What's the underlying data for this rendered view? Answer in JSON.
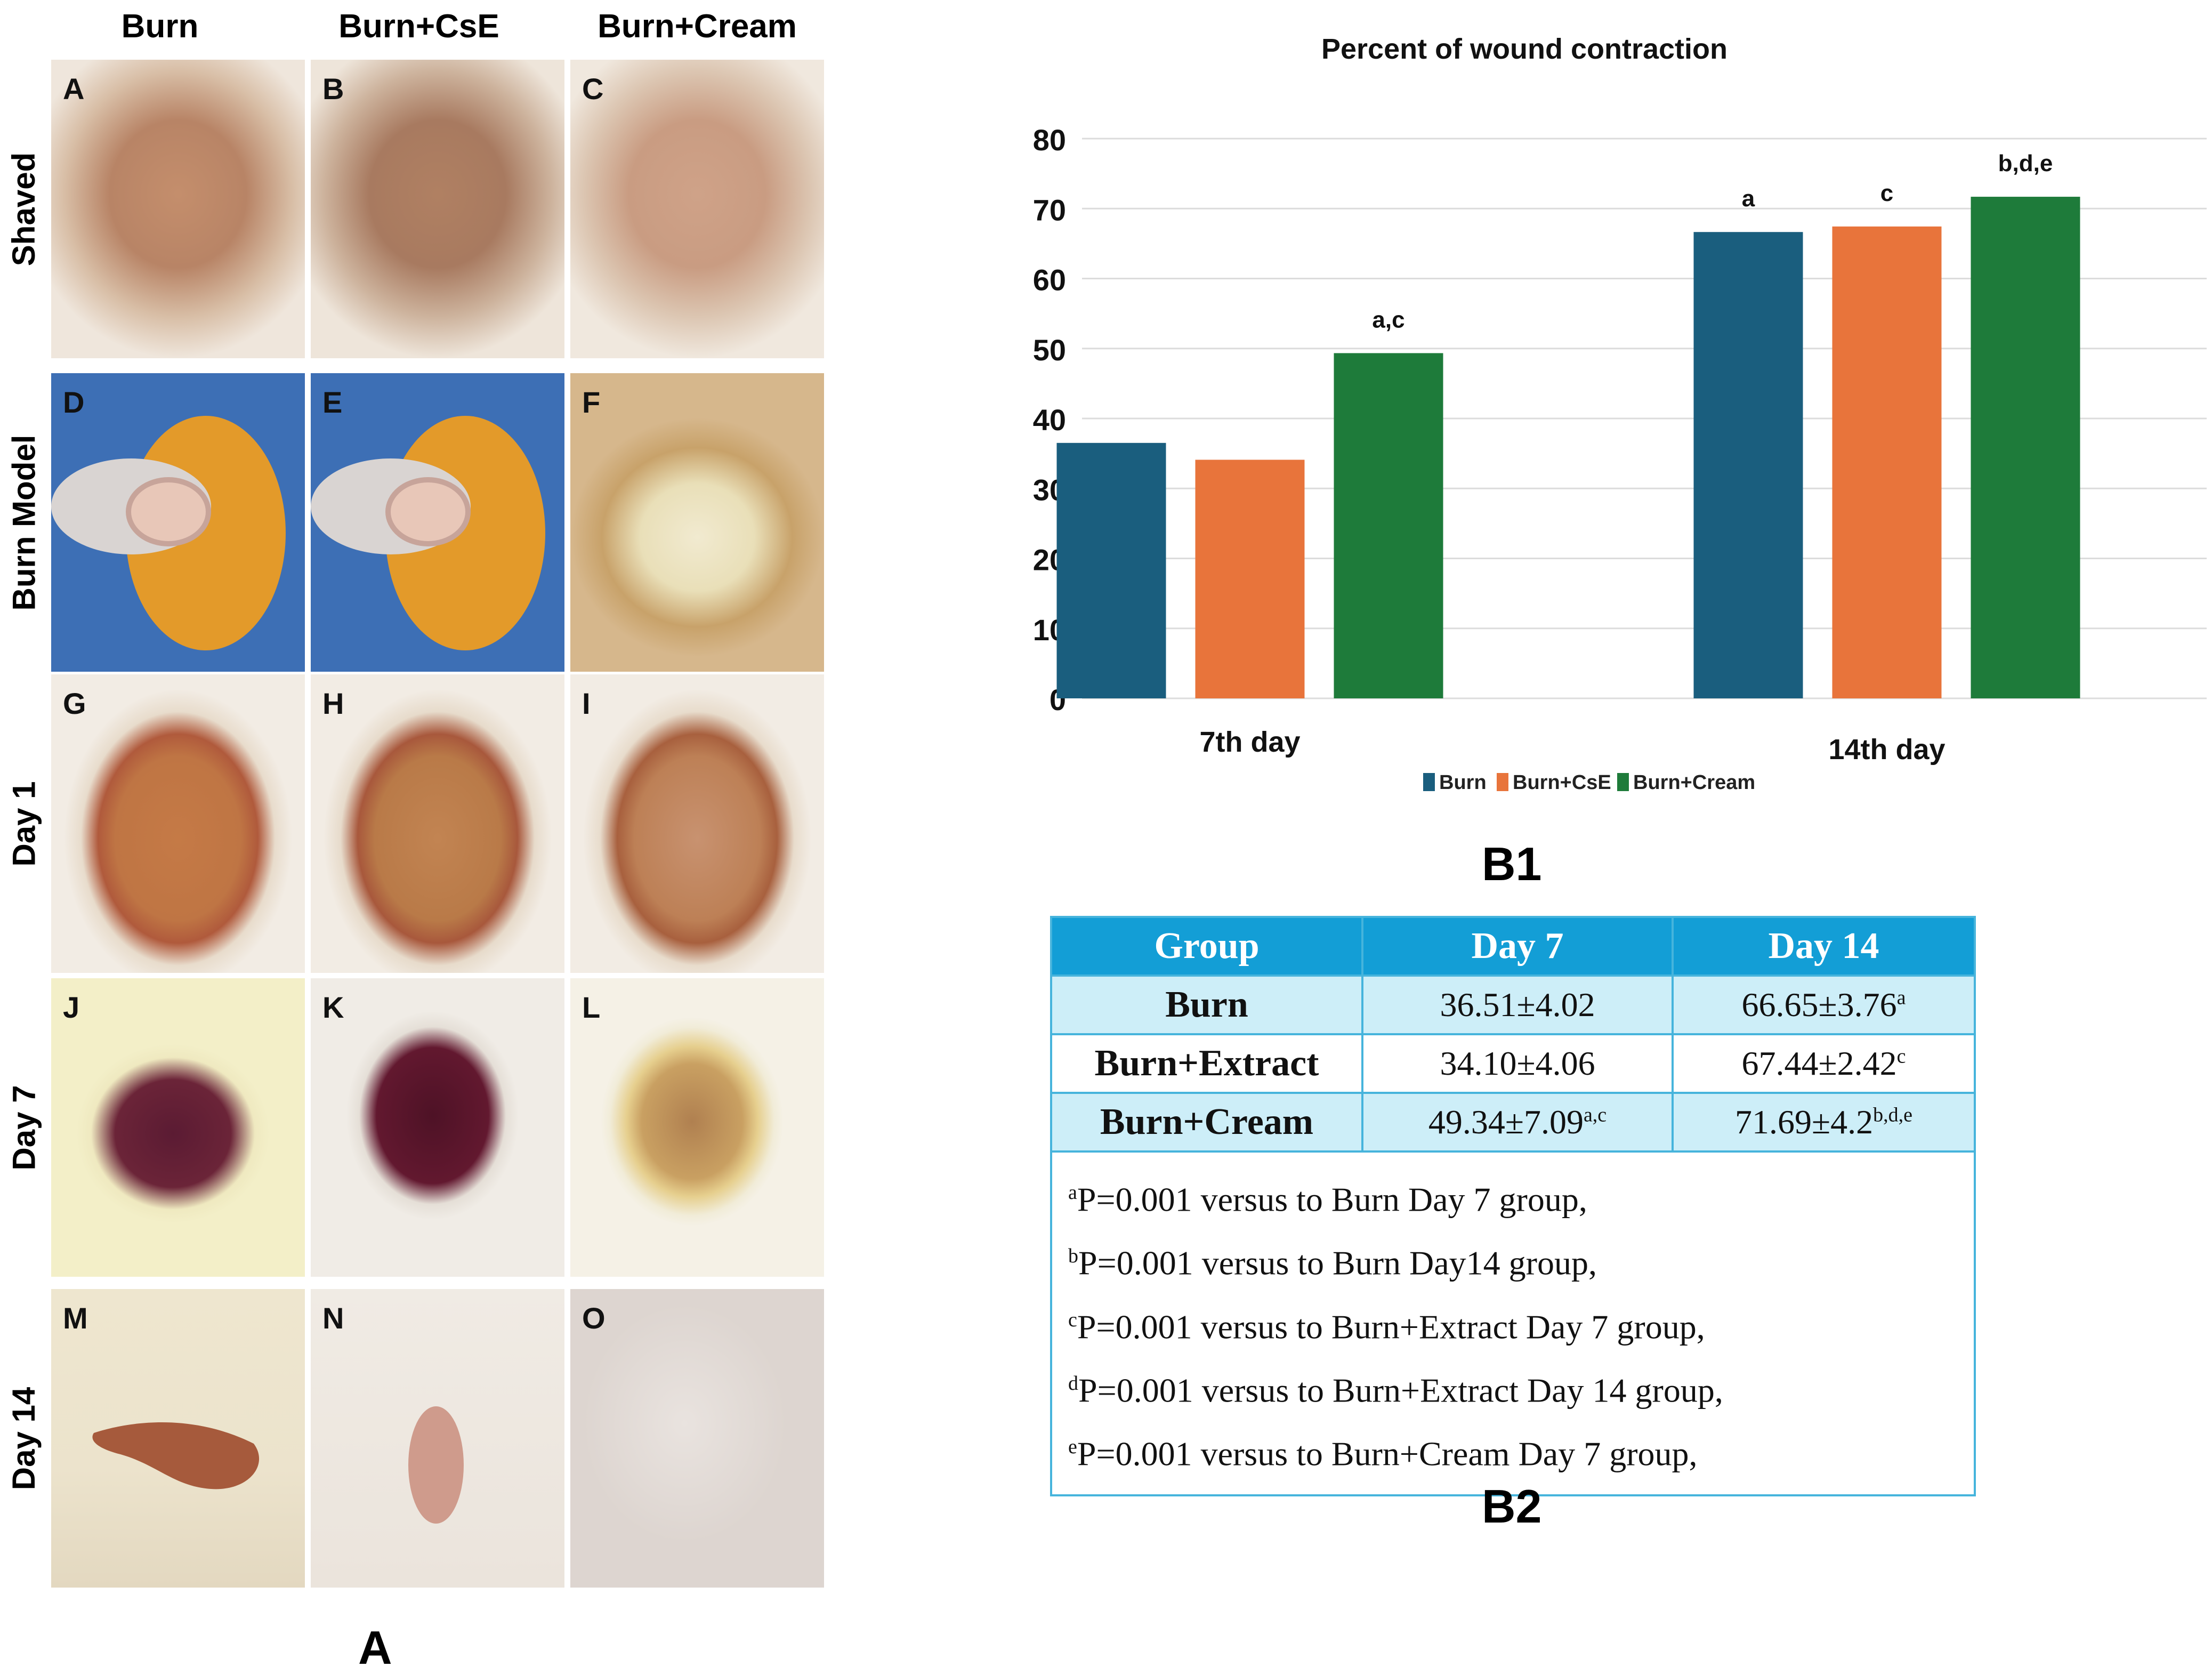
{
  "panel_a": {
    "columns": [
      "Burn",
      "Burn+CsE",
      "Burn+Cream"
    ],
    "rows": [
      "Shaved",
      "Burn Model",
      "Day 1",
      "Day 7",
      "Day 14"
    ],
    "panel_letters": [
      "A",
      "B",
      "C",
      "D",
      "E",
      "F",
      "G",
      "H",
      "I",
      "J",
      "K",
      "L",
      "M",
      "N",
      "O"
    ],
    "figure_label": "A"
  },
  "chart_data": {
    "type": "bar",
    "title": "Percent of wound contraction",
    "categories": [
      "7th day",
      "14th day"
    ],
    "series": [
      {
        "name": "Burn",
        "color": "#1a5e7e",
        "values": [
          36.51,
          66.65
        ],
        "annotations": [
          "",
          "a"
        ]
      },
      {
        "name": "Burn+CsE",
        "color": "#e8743b",
        "values": [
          34.1,
          67.44
        ],
        "annotations": [
          "",
          "c"
        ]
      },
      {
        "name": "Burn+Cream",
        "color": "#1e7b3a",
        "values": [
          49.34,
          71.69
        ],
        "annotations": [
          "a,c",
          "b,d,e"
        ]
      }
    ],
    "yticks": [
      0,
      10,
      20,
      30,
      40,
      50,
      60,
      70,
      80
    ],
    "ylim": [
      0,
      80
    ],
    "xlabel": "",
    "ylabel": "",
    "legend_position": "bottom",
    "figure_label": "B1"
  },
  "table": {
    "headers": [
      "Group",
      "Day 7",
      "Day 14"
    ],
    "rows": [
      {
        "group": "Burn",
        "day7": "36.51±4.02",
        "day7_sup": "",
        "day14": "66.65±3.76",
        "day14_sup": "a"
      },
      {
        "group": "Burn+Extract",
        "day7": "34.10±4.06",
        "day7_sup": "",
        "day14": "67.44±2.42",
        "day14_sup": "c"
      },
      {
        "group": "Burn+Cream",
        "day7": "49.34±7.09",
        "day7_sup": "a,c",
        "day14": "71.69±4.2",
        "day14_sup": "b,d,e"
      }
    ],
    "footnotes": [
      {
        "sup": "a",
        "text": "P=0.001 versus to Burn Day 7 group,"
      },
      {
        "sup": "b",
        "text": "P=0.001 versus to Burn Day14 group,"
      },
      {
        "sup": "c",
        "text": "P=0.001 versus to Burn+Extract Day 7 group,"
      },
      {
        "sup": "d",
        "text": "P=0.001 versus to Burn+Extract Day 14 group,"
      },
      {
        "sup": "e",
        "text": "P=0.001 versus to Burn+Cream Day 7 group,"
      }
    ],
    "figure_label": "B2"
  }
}
